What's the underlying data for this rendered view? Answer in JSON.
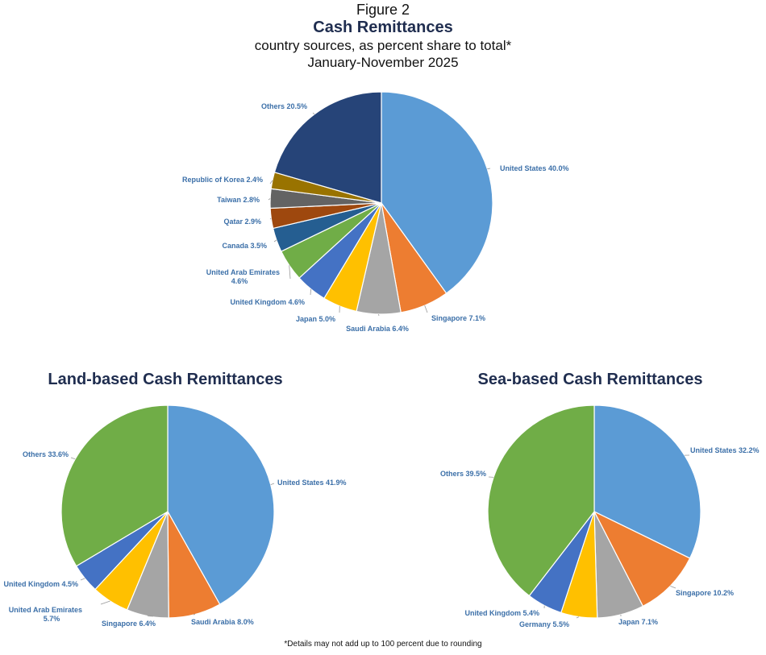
{
  "header": {
    "figure_label": "Figure 2",
    "title": "Cash Remittances",
    "subtitle": "country sources, as percent share to total*",
    "period": "January-November 2025"
  },
  "footnote": "*Details may not add up to 100 percent due to rounding",
  "colors": {
    "label_text": "#3b6fa8",
    "leader": "#999999",
    "slice_border": "#ffffff",
    "title_navy": "#1f2d4f"
  },
  "chart_data": [
    {
      "type": "pie",
      "title": "Cash Remittances",
      "slices": [
        {
          "label": "United States",
          "value": 40.0,
          "color": "#5b9bd5",
          "text": "United States 40.0%"
        },
        {
          "label": "Singapore",
          "value": 7.1,
          "color": "#ed7d31",
          "text": "Singapore 7.1%"
        },
        {
          "label": "Saudi Arabia",
          "value": 6.4,
          "color": "#a5a5a5",
          "text": "Saudi Arabia 6.4%"
        },
        {
          "label": "Japan",
          "value": 5.0,
          "color": "#ffc000",
          "text": "Japan 5.0%"
        },
        {
          "label": "United Kingdom",
          "value": 4.6,
          "color": "#4472c4",
          "text": "United Kingdom 4.6%"
        },
        {
          "label": "United Arab Emirates",
          "value": 4.6,
          "color": "#70ad47",
          "text": "United Arab Emirates\n4.6%"
        },
        {
          "label": "Canada",
          "value": 3.5,
          "color": "#255e91",
          "text": "Canada 3.5%"
        },
        {
          "label": "Qatar",
          "value": 2.9,
          "color": "#9e480e",
          "text": "Qatar 2.9%"
        },
        {
          "label": "Taiwan",
          "value": 2.8,
          "color": "#636363",
          "text": "Taiwan 2.8%"
        },
        {
          "label": "Republic of Korea",
          "value": 2.4,
          "color": "#997300",
          "text": "Republic of Korea 2.4%"
        },
        {
          "label": "Others",
          "value": 20.5,
          "color": "#264478",
          "text": "Others 20.5%"
        }
      ]
    },
    {
      "type": "pie",
      "title": "Land-based Cash Remittances",
      "slices": [
        {
          "label": "United States",
          "value": 41.9,
          "color": "#5b9bd5",
          "text": "United States 41.9%"
        },
        {
          "label": "Saudi Arabia",
          "value": 8.0,
          "color": "#ed7d31",
          "text": "Saudi Arabia 8.0%"
        },
        {
          "label": "Singapore",
          "value": 6.4,
          "color": "#a5a5a5",
          "text": "Singapore 6.4%"
        },
        {
          "label": "United Arab Emirates",
          "value": 5.7,
          "color": "#ffc000",
          "text": "United Arab Emirates\n5.7%"
        },
        {
          "label": "United Kingdom",
          "value": 4.5,
          "color": "#4472c4",
          "text": "United Kingdom 4.5%"
        },
        {
          "label": "Others",
          "value": 33.6,
          "color": "#70ad47",
          "text": "Others 33.6%"
        }
      ]
    },
    {
      "type": "pie",
      "title": "Sea-based Cash Remittances",
      "slices": [
        {
          "label": "United States",
          "value": 32.2,
          "color": "#5b9bd5",
          "text": "United States 32.2%"
        },
        {
          "label": "Singapore",
          "value": 10.2,
          "color": "#ed7d31",
          "text": "Singapore 10.2%"
        },
        {
          "label": "Japan",
          "value": 7.1,
          "color": "#a5a5a5",
          "text": "Japan 7.1%"
        },
        {
          "label": "Germany",
          "value": 5.5,
          "color": "#ffc000",
          "text": "Germany 5.5%"
        },
        {
          "label": "United Kingdom",
          "value": 5.4,
          "color": "#4472c4",
          "text": "United Kingdom 5.4%"
        },
        {
          "label": "Others",
          "value": 39.5,
          "color": "#70ad47",
          "text": "Others 39.5%"
        }
      ]
    }
  ]
}
